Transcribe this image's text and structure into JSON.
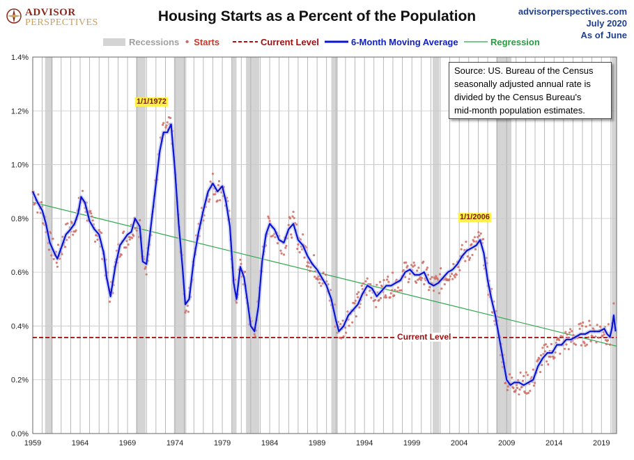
{
  "header": {
    "logo_text_1": "ADVISOR",
    "logo_text_2": "PERSPECTIVES",
    "title": "Housing Starts as a Percent of the Population",
    "site": "advisorperspectives.com",
    "date": "July 2020",
    "as_of": "As of June"
  },
  "legend": {
    "recessions": "Recessions",
    "starts": "Starts",
    "current": "Current Level",
    "ma": "6-Month Moving Average",
    "regression": "Regression"
  },
  "source_lines": [
    "Source: US. Bureau of the Census",
    "seasonally adjusted annual rate is",
    "divided by the Census Bureau's",
    "mid-month  population estimates."
  ],
  "annotations": {
    "peak_1972": "1/1/1972",
    "peak_2006": "1/1/2006",
    "current_level": "Current Level"
  },
  "colors": {
    "ma": "#0a14d2",
    "starts": "#d06a60",
    "current": "#b40f0f",
    "regression": "#2aa84a",
    "recession": "#d4d4d4",
    "grid": "#a8a8a8"
  },
  "chart_data": {
    "type": "line",
    "xlim": [
      1959,
      2020.6
    ],
    "ylim": [
      0,
      1.4
    ],
    "y_ticks": [
      "0.0%",
      "0.2%",
      "0.4%",
      "0.6%",
      "0.8%",
      "1.0%",
      "1.2%",
      "1.4%"
    ],
    "x_ticks": [
      "1959",
      "1964",
      "1969",
      "1974",
      "1979",
      "1984",
      "1989",
      "1994",
      "1999",
      "2004",
      "2009",
      "2014",
      "2019"
    ],
    "x_tick_values": [
      1959,
      1964,
      1969,
      1974,
      1979,
      1984,
      1989,
      1994,
      1999,
      2004,
      2009,
      2014,
      2019
    ],
    "recessions": [
      [
        1960.3,
        1961.1
      ],
      [
        1969.9,
        1970.9
      ],
      [
        1973.9,
        1975.2
      ],
      [
        1980.0,
        1980.5
      ],
      [
        1981.5,
        1982.9
      ],
      [
        1990.5,
        1991.2
      ],
      [
        2001.2,
        2001.9
      ],
      [
        2007.9,
        2009.5
      ],
      [
        2020.1,
        2020.6
      ]
    ],
    "current_level": 0.357,
    "regression": {
      "x": [
        1959,
        2020.6
      ],
      "y": [
        0.86,
        0.325
      ]
    },
    "series": [
      {
        "name": "6-Month Moving Average",
        "x": [
          1959.0,
          1959.5,
          1960.0,
          1960.4,
          1960.8,
          1961.3,
          1961.6,
          1962.0,
          1962.5,
          1963.0,
          1963.4,
          1963.8,
          1964.1,
          1964.5,
          1965.0,
          1965.5,
          1966.0,
          1966.5,
          1966.8,
          1967.2,
          1967.7,
          1968.2,
          1968.6,
          1969.0,
          1969.4,
          1969.8,
          1970.3,
          1970.6,
          1971.0,
          1971.5,
          1972.0,
          1972.4,
          1972.8,
          1973.2,
          1973.6,
          1974.0,
          1974.4,
          1974.8,
          1975.1,
          1975.5,
          1976.0,
          1976.5,
          1977.0,
          1977.5,
          1978.0,
          1978.5,
          1979.0,
          1979.4,
          1979.8,
          1980.2,
          1980.5,
          1980.9,
          1981.3,
          1981.7,
          1982.0,
          1982.4,
          1982.8,
          1983.2,
          1983.6,
          1984.0,
          1984.5,
          1985.0,
          1985.5,
          1986.0,
          1986.5,
          1987.0,
          1987.5,
          1988.0,
          1988.5,
          1989.0,
          1989.5,
          1990.0,
          1990.5,
          1991.0,
          1991.3,
          1991.8,
          1992.3,
          1992.8,
          1993.3,
          1993.8,
          1994.3,
          1994.8,
          1995.3,
          1995.8,
          1996.3,
          1996.8,
          1997.3,
          1997.8,
          1998.3,
          1998.8,
          1999.3,
          1999.8,
          2000.3,
          2000.8,
          2001.3,
          2001.8,
          2002.3,
          2002.8,
          2003.3,
          2003.8,
          2004.3,
          2004.8,
          2005.3,
          2005.8,
          2006.2,
          2006.6,
          2007.0,
          2007.4,
          2007.8,
          2008.2,
          2008.6,
          2009.0,
          2009.4,
          2009.8,
          2010.3,
          2010.8,
          2011.3,
          2011.8,
          2012.3,
          2012.8,
          2013.3,
          2013.8,
          2014.3,
          2014.8,
          2015.3,
          2015.8,
          2016.3,
          2016.8,
          2017.3,
          2017.8,
          2018.3,
          2018.8,
          2019.3,
          2019.6,
          2019.9,
          2020.1,
          2020.3,
          2020.5
        ],
        "y": [
          0.9,
          0.86,
          0.83,
          0.78,
          0.71,
          0.67,
          0.65,
          0.69,
          0.74,
          0.76,
          0.78,
          0.82,
          0.88,
          0.86,
          0.79,
          0.76,
          0.74,
          0.67,
          0.58,
          0.51,
          0.62,
          0.7,
          0.72,
          0.74,
          0.75,
          0.8,
          0.77,
          0.64,
          0.63,
          0.78,
          0.93,
          1.05,
          1.12,
          1.12,
          1.15,
          0.98,
          0.78,
          0.62,
          0.48,
          0.5,
          0.65,
          0.75,
          0.83,
          0.9,
          0.93,
          0.9,
          0.92,
          0.86,
          0.77,
          0.56,
          0.5,
          0.62,
          0.58,
          0.48,
          0.4,
          0.38,
          0.47,
          0.64,
          0.74,
          0.78,
          0.76,
          0.72,
          0.71,
          0.76,
          0.78,
          0.72,
          0.7,
          0.66,
          0.63,
          0.61,
          0.58,
          0.55,
          0.5,
          0.42,
          0.38,
          0.4,
          0.44,
          0.46,
          0.48,
          0.52,
          0.55,
          0.54,
          0.51,
          0.53,
          0.55,
          0.55,
          0.56,
          0.57,
          0.6,
          0.61,
          0.59,
          0.59,
          0.6,
          0.56,
          0.55,
          0.56,
          0.58,
          0.6,
          0.61,
          0.63,
          0.66,
          0.68,
          0.69,
          0.7,
          0.72,
          0.67,
          0.57,
          0.5,
          0.44,
          0.36,
          0.28,
          0.2,
          0.18,
          0.19,
          0.19,
          0.18,
          0.19,
          0.2,
          0.25,
          0.28,
          0.3,
          0.3,
          0.33,
          0.33,
          0.35,
          0.35,
          0.36,
          0.37,
          0.37,
          0.38,
          0.38,
          0.38,
          0.39,
          0.37,
          0.36,
          0.39,
          0.44,
          0.38
        ]
      }
    ]
  }
}
